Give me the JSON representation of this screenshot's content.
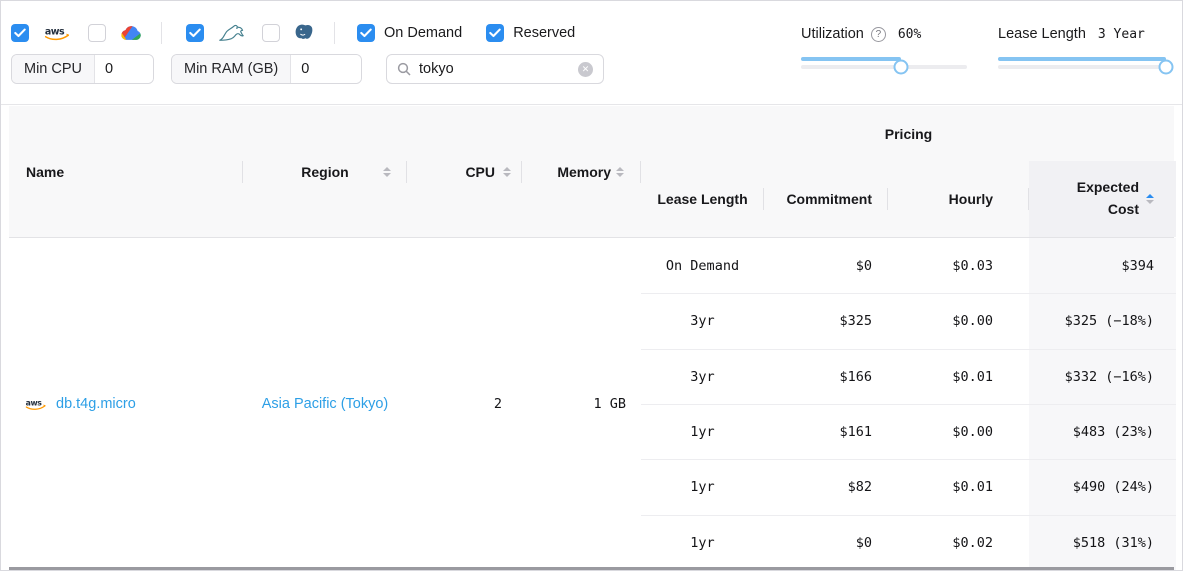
{
  "header": {
    "providers": [
      {
        "name": "aws",
        "checked": true
      },
      {
        "name": "gcp",
        "checked": false
      }
    ],
    "engines": [
      {
        "name": "mysql",
        "checked": true
      },
      {
        "name": "postgresql",
        "checked": false
      }
    ],
    "pricing_toggles": [
      {
        "label": "On Demand",
        "checked": true
      },
      {
        "label": "Reserved",
        "checked": true
      }
    ],
    "min_cpu": {
      "label": "Min CPU",
      "value": "0"
    },
    "min_ram": {
      "label": "Min RAM (GB)",
      "value": "0"
    },
    "search": {
      "value": "tokyo"
    },
    "utilization": {
      "label": "Utilization",
      "value": "60%",
      "percent": 60
    },
    "lease_length": {
      "label": "Lease Length",
      "value": "3 Year",
      "percent": 100
    }
  },
  "table": {
    "group_header": "Pricing",
    "columns": {
      "name": "Name",
      "region": "Region",
      "cpu": "CPU",
      "memory": "Memory",
      "lease": "Lease Length",
      "commitment": "Commitment",
      "hourly": "Hourly",
      "expected_cost": "Expected Cost"
    },
    "row": {
      "provider": "aws",
      "name": "db.t4g.micro",
      "region": "Asia Pacific (Tokyo)",
      "cpu": "2",
      "memory": "1 GB",
      "pricing": [
        {
          "lease": "On Demand",
          "commitment": "$0",
          "hourly": "$0.03",
          "expected": "$394"
        },
        {
          "lease": "3yr",
          "commitment": "$325",
          "hourly": "$0.00",
          "expected": "$325 (−18%)"
        },
        {
          "lease": "3yr",
          "commitment": "$166",
          "hourly": "$0.01",
          "expected": "$332 (−16%)"
        },
        {
          "lease": "1yr",
          "commitment": "$161",
          "hourly": "$0.00",
          "expected": "$483 (23%)"
        },
        {
          "lease": "1yr",
          "commitment": "$82",
          "hourly": "$0.01",
          "expected": "$490 (24%)"
        },
        {
          "lease": "1yr",
          "commitment": "$0",
          "hourly": "$0.02",
          "expected": "$518 (31%)"
        }
      ]
    }
  },
  "icons": [
    "aws-icon",
    "gcp-icon",
    "mysql-icon",
    "postgresql-icon",
    "search-icon",
    "clear-icon",
    "help-icon",
    "sort-icon"
  ],
  "colors": {
    "accent": "#2b8df0",
    "link": "#2d9fe6",
    "slider_fill": "#85c4f2",
    "expected_column_bg": "#f7f7f9",
    "aws_orange": "#ff9900",
    "mysql_teal": "#46818f",
    "postgres_blue": "#39668c"
  }
}
